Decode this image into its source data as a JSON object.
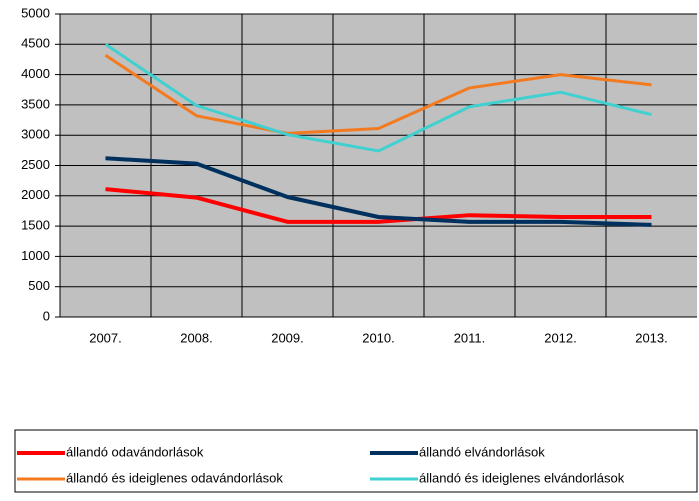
{
  "chart_data": {
    "type": "line",
    "categories": [
      "2007.",
      "2008.",
      "2009.",
      "2010.",
      "2011.",
      "2012.",
      "2013."
    ],
    "series": [
      {
        "name": "állandó odavándorlások",
        "color": "#ff0000",
        "values": [
          2110,
          1970,
          1570,
          1570,
          1680,
          1650,
          1650
        ]
      },
      {
        "name": "állandó elvándorlások",
        "color": "#00305e",
        "values": [
          2620,
          2530,
          1980,
          1650,
          1570,
          1570,
          1520
        ]
      },
      {
        "name": "állandó és ideiglenes odavándorlások",
        "color": "#f47a20",
        "values": [
          4320,
          3320,
          3030,
          3110,
          3780,
          4000,
          3830
        ]
      },
      {
        "name": "állandó és ideiglenes elvándorlások",
        "color": "#40d0d0",
        "values": [
          4500,
          3490,
          3010,
          2740,
          3470,
          3710,
          3340
        ]
      }
    ],
    "ylim": [
      0,
      5000
    ],
    "yticks": [
      0,
      500,
      1000,
      1500,
      2000,
      2500,
      3000,
      3500,
      4000,
      4500,
      5000
    ],
    "grid": true,
    "legend": "bottom"
  }
}
